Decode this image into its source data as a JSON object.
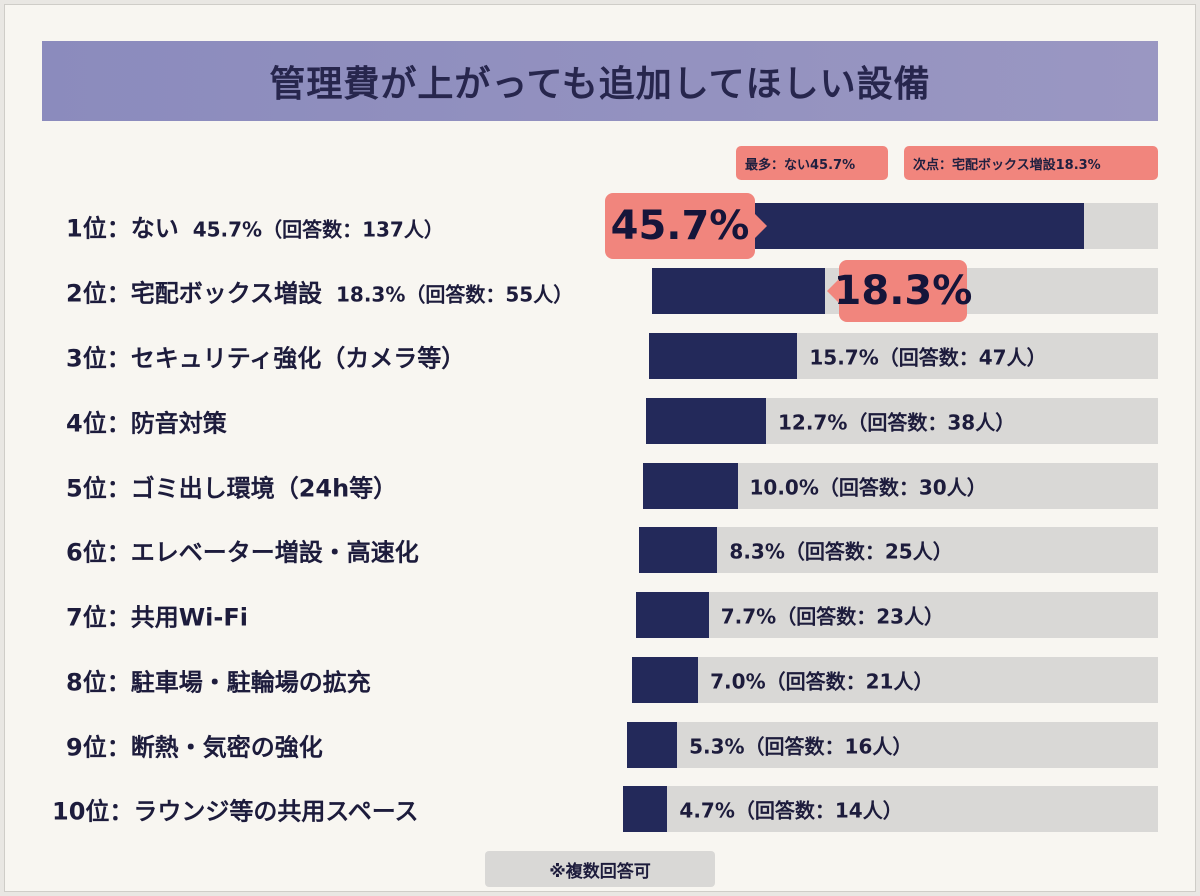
{
  "chart_data": {
    "type": "bar",
    "orientation": "horizontal",
    "title": "管理費が上がっても追加してほしい設備",
    "unit": "%",
    "colors": {
      "bar": "#23295a",
      "track": "#d9d8d6",
      "highlight": "#f1857d",
      "title_band": "#8f8fbf"
    },
    "tags": [
      "最多：ない45.7%",
      "次点：宅配ボックス増設18.3%"
    ],
    "note": "※複数回答可",
    "items": [
      {
        "label": "1位：ない",
        "value": 45.7,
        "count": 137,
        "value_text": "45.7%（回答数：137人）",
        "callout": "45.7%"
      },
      {
        "label": "2位：宅配ボックス増設",
        "value": 18.3,
        "count": 55,
        "value_text": "18.3%（回答数：55人）",
        "callout": "18.3%"
      },
      {
        "label": "3位：セキュリティ強化（カメラ等）",
        "value": 15.7,
        "count": 47,
        "value_text": "15.7%（回答数：47人）"
      },
      {
        "label": "4位：防音対策",
        "value": 12.7,
        "count": 38,
        "value_text": "12.7%（回答数：38人）"
      },
      {
        "label": "5位：ゴミ出し環境（24h等）",
        "value": 10.0,
        "count": 30,
        "value_text": "10.0%（回答数：30人）"
      },
      {
        "label": "6位：エレベーター増設・高速化",
        "value": 8.3,
        "count": 25,
        "value_text": "8.3%（回答数：25人）"
      },
      {
        "label": "7位：共用Wi-Fi",
        "value": 7.7,
        "count": 23,
        "value_text": "7.7%（回答数：23人）"
      },
      {
        "label": "8位：駐車場・駐輪場の拡充",
        "value": 7.0,
        "count": 21,
        "value_text": "7.0%（回答数：21人）"
      },
      {
        "label": "9位：断熱・気密の強化",
        "value": 5.3,
        "count": 16,
        "value_text": "5.3%（回答数：16人）"
      },
      {
        "label": "10位：ラウンジ等の共用スペース",
        "value": 4.7,
        "count": 14,
        "value_text": "4.7%（回答数：14人）"
      }
    ]
  }
}
